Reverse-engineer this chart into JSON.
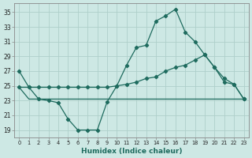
{
  "xlabel": "Humidex (Indice chaleur)",
  "background_color": "#cde8e4",
  "grid_color": "#aecfca",
  "line_color": "#1e6b5e",
  "xlim": [
    -0.5,
    23.5
  ],
  "ylim": [
    18.0,
    36.2
  ],
  "xticks": [
    0,
    1,
    2,
    3,
    4,
    5,
    6,
    7,
    8,
    9,
    10,
    11,
    12,
    13,
    14,
    15,
    16,
    17,
    18,
    19,
    20,
    21,
    22,
    23
  ],
  "yticks": [
    19,
    21,
    23,
    25,
    27,
    29,
    31,
    33,
    35
  ],
  "line1_x": [
    0,
    1,
    2,
    3,
    4,
    5,
    6,
    7,
    8,
    9,
    10,
    11,
    12,
    13,
    14,
    15,
    16,
    17,
    18,
    19,
    20,
    21,
    22,
    23
  ],
  "line1_y": [
    27.0,
    24.8,
    23.2,
    23.0,
    22.7,
    20.5,
    19.0,
    19.0,
    19.0,
    22.8,
    25.0,
    27.8,
    30.2,
    30.5,
    33.8,
    34.5,
    35.4,
    32.3,
    31.0,
    29.2,
    27.5,
    25.5,
    25.2,
    23.2
  ],
  "line2_x": [
    0,
    1,
    2,
    3,
    22,
    23
  ],
  "line2_y": [
    24.8,
    23.2,
    23.2,
    23.2,
    23.2,
    23.2
  ],
  "line3_x": [
    0,
    1,
    2,
    3,
    4,
    5,
    6,
    7,
    8,
    9,
    10,
    11,
    12,
    13,
    14,
    15,
    16,
    17,
    18,
    19,
    20,
    21,
    22,
    23
  ],
  "line3_y": [
    24.8,
    24.8,
    24.8,
    24.8,
    24.8,
    24.8,
    24.8,
    24.8,
    24.8,
    24.8,
    25.0,
    25.2,
    25.5,
    26.0,
    26.2,
    27.0,
    27.5,
    27.8,
    28.5,
    29.2,
    27.5,
    26.0,
    25.2,
    23.2
  ],
  "marker": "D",
  "markersize": 2.2,
  "lw": 0.9
}
